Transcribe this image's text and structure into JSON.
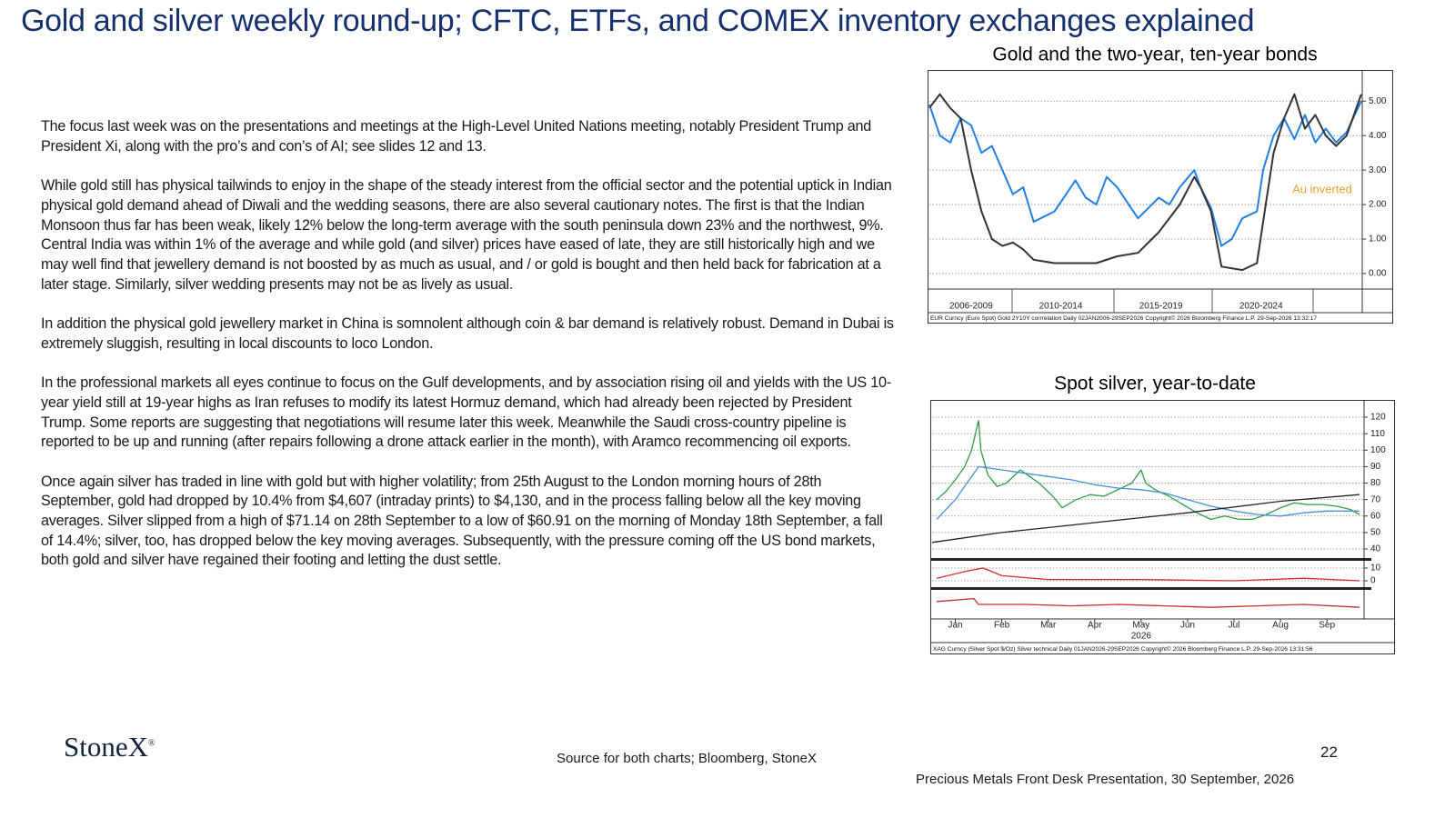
{
  "title": "Gold and silver weekly round-up; CFTC, ETFs, and COMEX inventory exchanges explained",
  "paragraphs": [
    "The focus last week was on the presentations and meetings at the High-Level United Nations meeting, notably President Trump and President Xi, along with the pro’s and con’s of AI; see slides  12 and 13.",
    "While gold still has physical tailwinds to enjoy in the shape of the steady interest from the official sector and the potential uptick in Indian physical gold demand ahead of Diwali and the wedding seasons, there are also several cautionary notes. The first is that the Indian Monsoon thus far has been weak, likely 12% below the long-term average with the south peninsula down 23% and the northwest, 9%.  Central India was within 1% of the average and while gold (and silver) prices have eased of late, they are still historically high and we may well find that jewellery demand is not boosted by as much as usual, and / or gold is bought and then held back for fabrication at a later stage.  Similarly, silver wedding presents may not be as lively as usual.",
    "In addition the physical gold jewellery market in China is somnolent although coin & bar demand is relatively robust. Demand in Dubai is extremely sluggish, resulting in local discounts to loco London.",
    "In the professional markets all eyes continue to focus on the Gulf developments, and by association rising oil and yields with the US 10-year yield still at 19-year highs as Iran refuses to modify its latest Hormuz demand, which had already been rejected by President Trump.  Some reports are suggesting that negotiations will resume later this week.  Meanwhile the Saudi cross-country pipeline is reported to be up and running (after repairs following a drone attack earlier in the month), with Aramco recommencing oil exports.",
    "Once again silver has traded in line with gold but with higher volatility; from 25th August to the London morning hours of 28th September, gold had dropped by 10.4% from $4,607 (intraday prints) to $4,130, and in the process falling below all the key moving averages. Silver slipped from a high of $71.14 on 28th September to a low of $60.91 on the morning of Monday 18th September, a fall of 14.4%; silver, too, has dropped below the key moving averages.  Subsequently, with the pressure coming off the US bond markets, both gold and silver have regained their footing and letting the dust settle."
  ],
  "charts": [
    {
      "type": "line",
      "title": "Gold and the two-year,  ten-year bonds",
      "legend_text": "Au inverted",
      "note": "EUR Curncy (Euro Spot) Gold 2Y10Y corrrelation Daily 02JAN2006-29SEP2026  Copyright© 2026 Bloomberg Finance L.P.   29-Sep-2026 13:32:17",
      "xlim": [
        2006,
        2026.75
      ],
      "xticks": [
        {
          "value": 2008,
          "label": "2006-2009"
        },
        {
          "value": 2012.3,
          "label": "2010-2014"
        },
        {
          "value": 2017.1,
          "label": "2015-2019"
        },
        {
          "value": 2021.9,
          "label": "2020-2024"
        }
      ],
      "grid": true,
      "panels": [
        {
          "ylim": [
            -0.45,
            5.85
          ],
          "yticks": [
            {
              "value": 5,
              "label": "5.00"
            },
            {
              "value": 4,
              "label": "4.00"
            },
            {
              "value": 3,
              "label": "3.00"
            },
            {
              "value": 2,
              "label": "2.00"
            },
            {
              "value": 1,
              "label": "1.00"
            },
            {
              "value": 0,
              "label": "0.00"
            }
          ],
          "series": [
            {
              "name": "Au inverted",
              "color": "#1f7fe6",
              "x": [
                2006,
                2006.5,
                2007,
                2007.5,
                2008,
                2008.5,
                2009,
                2009.5,
                2010,
                2010.5,
                2011,
                2012,
                2013,
                2013.5,
                2014,
                2014.5,
                2015,
                2016,
                2017,
                2017.5,
                2018,
                2018.7,
                2019,
                2019.5,
                2020,
                2020.5,
                2021,
                2021.7,
                2022,
                2022.5,
                2023,
                2023.5,
                2024,
                2024.5,
                2025,
                2025.5,
                2026,
                2026.7
              ],
              "values": [
                4.9,
                4.0,
                3.8,
                4.5,
                4.3,
                3.5,
                3.7,
                3.0,
                2.3,
                2.5,
                1.5,
                1.8,
                2.7,
                2.2,
                2.0,
                2.8,
                2.5,
                1.6,
                2.2,
                2.0,
                2.5,
                3.0,
                2.5,
                1.9,
                0.8,
                1.0,
                1.6,
                1.8,
                3.0,
                4.0,
                4.5,
                3.9,
                4.6,
                3.8,
                4.2,
                3.8,
                4.1,
                5.0
              ]
            },
            {
              "color": "#333333",
              "x": [
                2006,
                2006.5,
                2007,
                2007.5,
                2008,
                2008.5,
                2009,
                2009.5,
                2010,
                2010.5,
                2011,
                2012,
                2013,
                2014,
                2015,
                2016,
                2017,
                2018,
                2018.7,
                2019,
                2019.5,
                2020,
                2021,
                2021.7,
                2022,
                2022.5,
                2023,
                2023.5,
                2024,
                2024.5,
                2025,
                2025.5,
                2026,
                2026.7
              ],
              "values": [
                4.8,
                5.2,
                4.8,
                4.5,
                3.0,
                1.8,
                1.0,
                0.8,
                0.9,
                0.7,
                0.4,
                0.3,
                0.3,
                0.3,
                0.5,
                0.6,
                1.2,
                2.0,
                2.8,
                2.5,
                1.8,
                0.2,
                0.1,
                0.3,
                1.5,
                3.5,
                4.5,
                5.2,
                4.2,
                4.6,
                4.0,
                3.7,
                4.0,
                5.2
              ]
            }
          ]
        }
      ]
    },
    {
      "type": "line",
      "title": "Spot silver, year-to-date",
      "xlabel": "2026",
      "note": "XAG Curncy (Silver Spot $/Oz) Silver technical Daily 01JAN2026-29SEP2026  Copyright© 2026 Bloomberg Finance L.P.   29-Sep-2026 13:31:56",
      "xlim": [
        0.5,
        9.8
      ],
      "xticks": [
        {
          "value": 1,
          "label": "Jan"
        },
        {
          "value": 2,
          "label": "Feb"
        },
        {
          "value": 3,
          "label": "Mar"
        },
        {
          "value": 4,
          "label": "Apr"
        },
        {
          "value": 5,
          "label": "May"
        },
        {
          "value": 6,
          "label": "Jun"
        },
        {
          "value": 7,
          "label": "Jul"
        },
        {
          "value": 8,
          "label": "Aug"
        },
        {
          "value": 9,
          "label": "Sep"
        }
      ],
      "grid": true,
      "panels": [
        {
          "ylim": [
            34.5,
            129.4
          ],
          "yticks": [
            120,
            110,
            100,
            90,
            80,
            70,
            60,
            50,
            40
          ],
          "series": [
            {
              "color": "#2f9e44",
              "x": [
                0.6,
                0.8,
                1.0,
                1.2,
                1.35,
                1.45,
                1.5,
                1.55,
                1.7,
                1.9,
                2.1,
                2.4,
                2.6,
                2.8,
                3.1,
                3.3,
                3.6,
                3.9,
                4.2,
                4.5,
                4.8,
                5.0,
                5.1,
                5.3,
                5.6,
                5.9,
                6.2,
                6.5,
                6.8,
                7.1,
                7.4,
                7.7,
                8.0,
                8.3,
                8.6,
                8.9,
                9.2,
                9.5,
                9.7
              ],
              "values": [
                70,
                75,
                82,
                90,
                100,
                112,
                118,
                100,
                85,
                78,
                80,
                88,
                84,
                80,
                72,
                65,
                70,
                73,
                72,
                76,
                80,
                88,
                80,
                76,
                72,
                67,
                62,
                58,
                60,
                58,
                58,
                61,
                65,
                68,
                67,
                67,
                66,
                64,
                61
              ]
            },
            {
              "color": "#4a90d9",
              "x": [
                0.6,
                1.0,
                1.5,
                2.0,
                2.5,
                3.0,
                3.5,
                4.0,
                4.5,
                5.0,
                5.5,
                6.0,
                6.5,
                7.0,
                7.5,
                8.0,
                8.5,
                9.0,
                9.7
              ],
              "values": [
                58,
                70,
                90,
                88,
                86,
                84,
                82,
                79,
                77,
                76,
                74,
                70,
                66,
                63,
                61,
                60,
                62,
                63,
                63
              ]
            },
            {
              "color": "#222222",
              "x": [
                0.5,
                2,
                4,
                6,
                8,
                9.7
              ],
              "values": [
                44,
                50,
                56,
                62,
                69,
                73
              ]
            }
          ]
        },
        {
          "ylim": [
            -5,
            15.7
          ],
          "yticks": [
            10,
            0
          ],
          "series": [
            {
              "color": "#d03030",
              "x": [
                0.6,
                1.3,
                1.6,
                2.0,
                3.0,
                5.0,
                7.0,
                8.5,
                9.7
              ],
              "values": [
                2,
                8,
                10,
                4,
                1,
                1,
                0,
                2,
                0
              ]
            }
          ]
        },
        {
          "ylim": [
            0,
            10
          ],
          "yticks": [],
          "series": [
            {
              "color": "#c03030",
              "x": [
                0.6,
                1.4,
                1.5,
                2.5,
                3.5,
                4.5,
                5.5,
                6.5,
                7.5,
                8.5,
                9.7
              ],
              "values": [
                6,
                7,
                5,
                5,
                4.5,
                5,
                4.5,
                4,
                4.5,
                5,
                4
              ]
            }
          ]
        }
      ]
    }
  ],
  "footer": {
    "logo": "StoneX",
    "logo_mark": "®",
    "source": "Source for both charts; Bloomberg, StoneX",
    "page_number": "22",
    "presentation": "Precious Metals Front Desk Presentation, 30 September, 2026"
  }
}
